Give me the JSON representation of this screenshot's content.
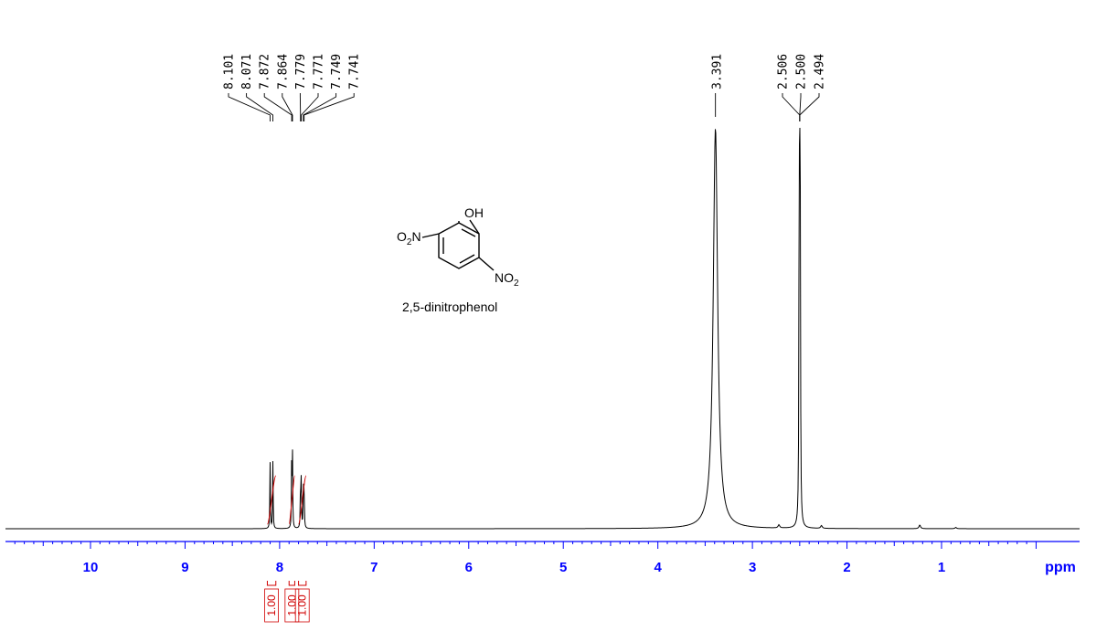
{
  "chart_data": {
    "type": "line",
    "title": "",
    "xlabel": "ppm",
    "ylabel": "",
    "xlim": [
      11.0,
      0.0
    ],
    "x_reversed": true,
    "x_ticks": [
      "10",
      "9",
      "8",
      "7",
      "6",
      "5",
      "4",
      "3",
      "2",
      "1"
    ],
    "peaks": [
      {
        "ppm": 8.101,
        "height": 0.17
      },
      {
        "ppm": 8.071,
        "height": 0.17
      },
      {
        "ppm": 7.872,
        "height": 0.18
      },
      {
        "ppm": 7.864,
        "height": 0.18
      },
      {
        "ppm": 7.779,
        "height": 0.12
      },
      {
        "ppm": 7.771,
        "height": 0.12
      },
      {
        "ppm": 7.749,
        "height": 0.11
      },
      {
        "ppm": 7.741,
        "height": 0.11
      },
      {
        "ppm": 3.391,
        "height": 1.0
      },
      {
        "ppm": 2.506,
        "height": 0.6
      },
      {
        "ppm": 2.5,
        "height": 0.95
      },
      {
        "ppm": 2.494,
        "height": 0.6
      }
    ],
    "peak_labels_left": [
      "8.101",
      "8.071",
      "7.872",
      "7.864",
      "7.779",
      "7.771",
      "7.749",
      "7.741"
    ],
    "peak_labels_mid": [
      "3.391"
    ],
    "peak_labels_right": [
      "2.506",
      "2.500",
      "2.494"
    ],
    "integrals": [
      {
        "from": 8.13,
        "to": 8.04,
        "value": "1.00"
      },
      {
        "from": 7.9,
        "to": 7.84,
        "value": "1.00"
      },
      {
        "from": 7.8,
        "to": 7.72,
        "value": "1.00"
      }
    ],
    "minor_peaks": [
      {
        "ppm": 2.72,
        "height": 0.008
      },
      {
        "ppm": 2.27,
        "height": 0.007
      },
      {
        "ppm": 1.23,
        "height": 0.009
      },
      {
        "ppm": 0.85,
        "height": 0.003
      }
    ],
    "colors": {
      "spectrum": "#000000",
      "axis": "#0000ff",
      "integral": "#d00000"
    }
  },
  "structure": {
    "oh_label": "OH",
    "o2n_left_main": "O",
    "o2n_left_sub": "2",
    "o2n_left_tail": "N",
    "no2_right_main": "NO",
    "no2_right_sub": "2",
    "compound_name": "2,5-dinitrophenol"
  }
}
